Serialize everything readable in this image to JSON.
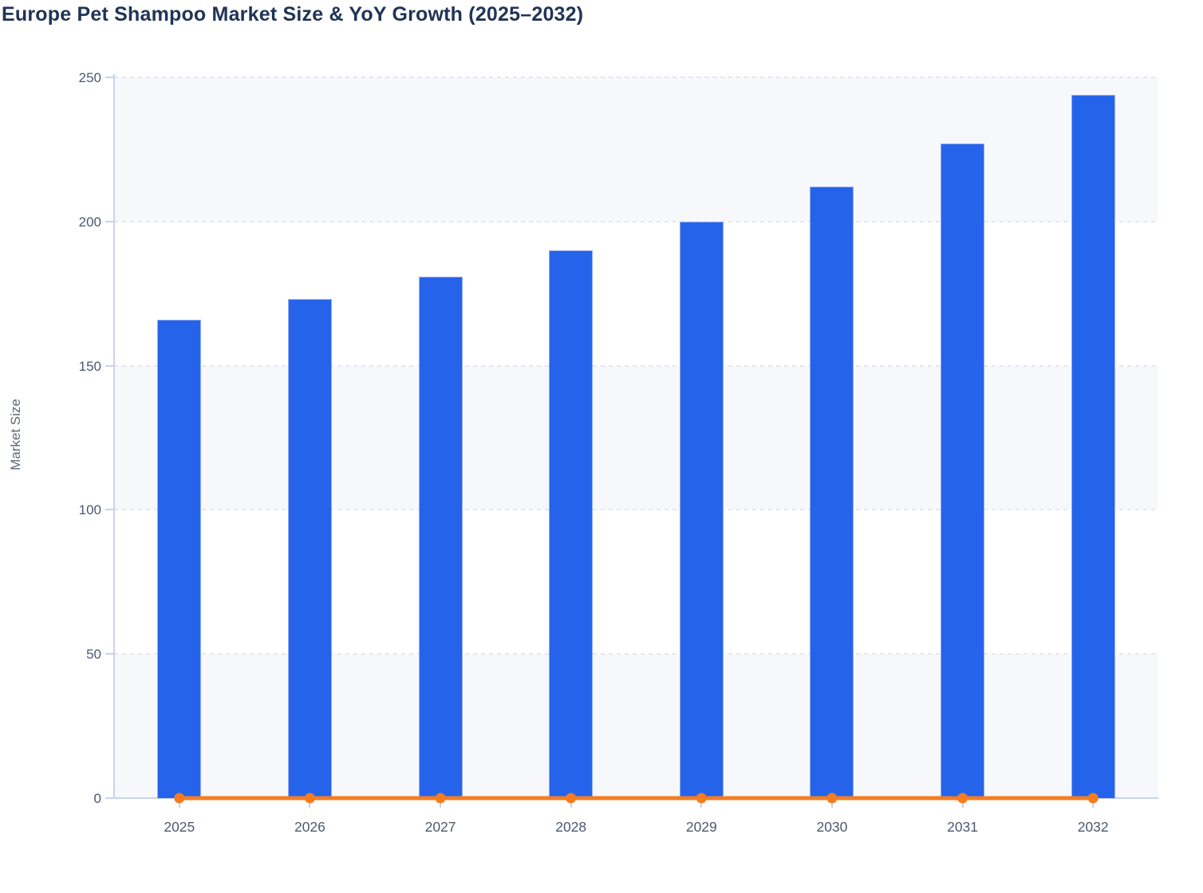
{
  "title": "Europe Pet Shampoo Market Size & YoY Growth (2025–2032)",
  "colors": {
    "bar_fill": "#2563eb",
    "bar_stroke": "#94adf0",
    "line": "#f57c1f",
    "marker": "#f57c1f",
    "title_text": "#203457",
    "tick_text": "#4c5870",
    "axis_title_text": "#5c6878",
    "axis_line": "#c9d3ee",
    "gridline": "#e3e6ee",
    "band_gray": "#f7f8fb",
    "band_white": "#ffffff",
    "background": "#ffffff"
  },
  "chart_data": {
    "type": "bar",
    "title": "Europe Pet Shampoo Market Size & YoY Growth (2025–2032)",
    "categories": [
      "2025",
      "2026",
      "2027",
      "2028",
      "2029",
      "2030",
      "2031",
      "2032"
    ],
    "series": [
      {
        "name": "Market Size",
        "type": "bar",
        "values": [
          166,
          173,
          181,
          190,
          200,
          212,
          227,
          244
        ]
      },
      {
        "name": "YoY Growth",
        "type": "line",
        "values": [
          0,
          0,
          0,
          0,
          0,
          0,
          0,
          0
        ]
      }
    ],
    "xlabel": "",
    "ylabel": "Market Size",
    "ylim": [
      0,
      250
    ],
    "yticks": [
      0,
      50,
      100,
      150,
      200,
      250
    ],
    "grid": "horizontal-dashed",
    "plot_background": "alternating-horizontal-bands",
    "legend": "none"
  }
}
